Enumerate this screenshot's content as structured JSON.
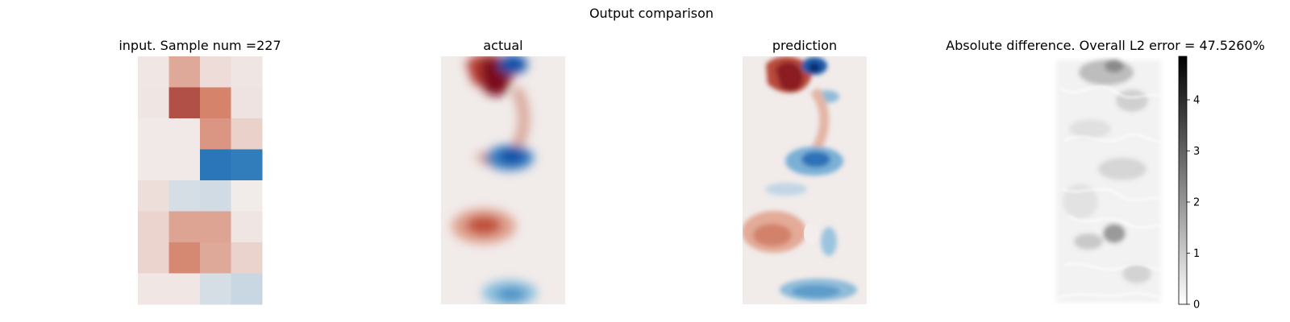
{
  "figure": {
    "title": "Output comparison"
  },
  "colors": {
    "neg_strong": "#0a50a8",
    "neg_mid": "#4b9bc9",
    "neutral": "#f1ebea",
    "pos_mid": "#d27a60",
    "pos_strong": "#7a0a1c",
    "diff_low": "#ffffff",
    "diff_high": "#000000"
  },
  "chart_data": [
    {
      "type": "heatmap",
      "title": "input. Sample num =227",
      "grid": {
        "rows": 8,
        "cols": 4
      },
      "values": [
        [
          0.02,
          0.35,
          0.08,
          0.03
        ],
        [
          0.03,
          0.75,
          0.55,
          0.04
        ],
        [
          0.01,
          0.01,
          0.45,
          0.14
        ],
        [
          0.01,
          0.01,
          -0.8,
          -0.76
        ],
        [
          0.07,
          -0.1,
          -0.12,
          0.0
        ],
        [
          0.12,
          0.38,
          0.38,
          0.03
        ],
        [
          0.12,
          0.52,
          0.35,
          0.13
        ],
        [
          0.02,
          0.02,
          -0.1,
          -0.15
        ]
      ],
      "vlim": [
        -1,
        1
      ],
      "axes": "off"
    },
    {
      "type": "heatmap",
      "title": "actual",
      "field": "vortex-street",
      "axes": "off"
    },
    {
      "type": "heatmap",
      "title": "prediction",
      "field": "vortex-street-noisy",
      "axes": "off"
    },
    {
      "type": "heatmap",
      "title": "Absolute difference. Overall L2 error = 47.5260%",
      "field": "absolute-difference",
      "colormap": "Greys",
      "colorbar": {
        "min": 0,
        "max": 4.85,
        "ticks": [
          "0",
          "1",
          "2",
          "3",
          "4"
        ]
      },
      "axes": "off"
    }
  ]
}
